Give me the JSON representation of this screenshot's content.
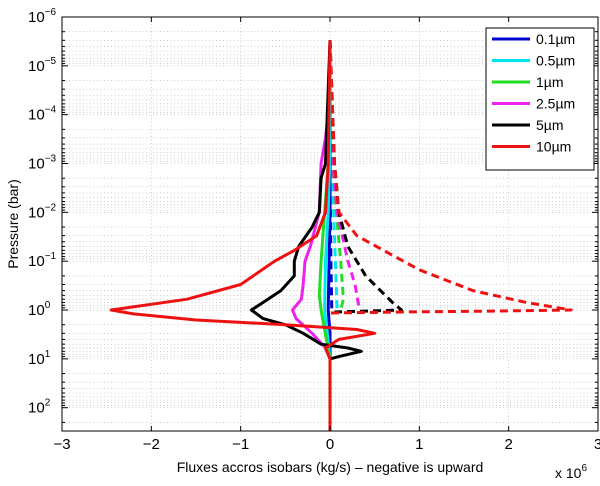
{
  "chart_data": {
    "type": "line",
    "xlabel": "Fluxes accros isobars  (kg/s)  – negative is upward",
    "ylabel": "Pressure (bar)",
    "x_multiplier": "x 10",
    "x_multiplier_exp": "6",
    "xlim": [
      -3,
      3
    ],
    "ylim": [
      1e-06,
      300
    ],
    "y_scale": "log",
    "y_reversed": true,
    "grid": true,
    "legend_position": "top-right",
    "x_ticks": [
      {
        "label": "−3",
        "value": -3
      },
      {
        "label": "−2",
        "value": -2
      },
      {
        "label": "−1",
        "value": -1
      },
      {
        "label": "0",
        "value": 0
      },
      {
        "label": "1",
        "value": 1
      },
      {
        "label": "2",
        "value": 2
      },
      {
        "label": "3",
        "value": 3
      }
    ],
    "y_ticks": [
      {
        "base": "10",
        "exp": "−6",
        "value": 1e-06
      },
      {
        "base": "10",
        "exp": "−5",
        "value": 1e-05
      },
      {
        "base": "10",
        "exp": "−4",
        "value": 0.0001
      },
      {
        "base": "10",
        "exp": "−3",
        "value": 0.001
      },
      {
        "base": "10",
        "exp": "−2",
        "value": 0.01
      },
      {
        "base": "10",
        "exp": "−1",
        "value": 0.1
      },
      {
        "base": "10",
        "exp": "0",
        "value": 1
      },
      {
        "base": "10",
        "exp": "1",
        "value": 10
      },
      {
        "base": "10",
        "exp": "2",
        "value": 100
      }
    ],
    "series": [
      {
        "name": "0.1µm",
        "color": "#0000cc",
        "solid": [
          [
            0,
            3e-06
          ],
          [
            0,
            0.0001
          ],
          [
            0,
            0.01
          ],
          [
            -0.01,
            0.1
          ],
          [
            -0.02,
            1
          ],
          [
            0,
            3
          ],
          [
            0,
            10
          ],
          [
            0,
            300
          ]
        ],
        "dashed": [
          [
            0,
            3e-06
          ],
          [
            0.005,
            0.01
          ],
          [
            0.01,
            0.1
          ],
          [
            0.02,
            1
          ]
        ]
      },
      {
        "name": "0.5µm",
        "color": "#00e5ee",
        "solid": [
          [
            0,
            3e-06
          ],
          [
            -0.005,
            0.001
          ],
          [
            -0.02,
            0.01
          ],
          [
            -0.05,
            0.1
          ],
          [
            -0.06,
            1
          ],
          [
            -0.03,
            3
          ],
          [
            0,
            10
          ],
          [
            0,
            300
          ]
        ],
        "dashed": [
          [
            0,
            3e-06
          ],
          [
            0.02,
            0.001
          ],
          [
            0.04,
            0.01
          ],
          [
            0.06,
            0.1
          ],
          [
            0.08,
            1
          ]
        ]
      },
      {
        "name": "1µm",
        "color": "#22dd22",
        "solid": [
          [
            0,
            3e-06
          ],
          [
            -0.02,
            0.001
          ],
          [
            -0.06,
            0.01
          ],
          [
            -0.1,
            0.1
          ],
          [
            -0.12,
            0.5
          ],
          [
            -0.1,
            1
          ],
          [
            -0.07,
            2
          ],
          [
            -0.04,
            4
          ],
          [
            0,
            10
          ],
          [
            0,
            300
          ]
        ],
        "dashed": [
          [
            0,
            3e-06
          ],
          [
            0.03,
            0.001
          ],
          [
            0.07,
            0.01
          ],
          [
            0.12,
            0.1
          ],
          [
            0.15,
            0.6
          ],
          [
            0.12,
            1
          ]
        ]
      },
      {
        "name": "2.5µm",
        "color": "#ee22ee",
        "solid": [
          [
            0,
            3e-06
          ],
          [
            -0.02,
            0.0001
          ],
          [
            -0.05,
            0.0003
          ],
          [
            -0.1,
            0.001
          ],
          [
            -0.12,
            0.01
          ],
          [
            -0.22,
            0.05
          ],
          [
            -0.28,
            0.1
          ],
          [
            -0.3,
            0.3
          ],
          [
            -0.32,
            0.6
          ],
          [
            -0.42,
            1
          ],
          [
            -0.38,
            1.5
          ],
          [
            -0.2,
            3
          ],
          [
            -0.05,
            6
          ],
          [
            0,
            10
          ],
          [
            0,
            300
          ]
        ],
        "dashed": [
          [
            0,
            3e-06
          ],
          [
            0.03,
            0.001
          ],
          [
            0.08,
            0.01
          ],
          [
            0.2,
            0.1
          ],
          [
            0.28,
            0.3
          ],
          [
            0.33,
            1
          ]
        ]
      },
      {
        "name": "5µm",
        "color": "#000000",
        "solid": [
          [
            0,
            3e-06
          ],
          [
            -0.05,
            0.001
          ],
          [
            -0.1,
            0.002
          ],
          [
            -0.12,
            0.01
          ],
          [
            -0.2,
            0.02
          ],
          [
            -0.35,
            0.05
          ],
          [
            -0.4,
            0.1
          ],
          [
            -0.4,
            0.2
          ],
          [
            -0.55,
            0.4
          ],
          [
            -0.75,
            0.7
          ],
          [
            -0.88,
            1
          ],
          [
            -0.75,
            1.5
          ],
          [
            -0.5,
            2
          ],
          [
            -0.3,
            3
          ],
          [
            -0.1,
            5
          ],
          [
            0.2,
            6
          ],
          [
            0.35,
            7
          ],
          [
            0.1,
            9
          ],
          [
            0,
            10
          ],
          [
            0,
            300
          ]
        ],
        "dashed": [
          [
            0,
            3e-06
          ],
          [
            0.05,
            0.001
          ],
          [
            0.1,
            0.01
          ],
          [
            0.2,
            0.05
          ],
          [
            0.4,
            0.2
          ],
          [
            0.7,
            0.7
          ],
          [
            0.8,
            1
          ],
          [
            0.4,
            1.05
          ],
          [
            0.05,
            1.1
          ]
        ]
      },
      {
        "name": "10µm",
        "color": "#ee1111",
        "solid": [
          [
            0,
            3e-06
          ],
          [
            -0.02,
            0.001
          ],
          [
            -0.05,
            0.01
          ],
          [
            -0.15,
            0.03
          ],
          [
            -0.4,
            0.06
          ],
          [
            -0.62,
            0.1
          ],
          [
            -1.0,
            0.3
          ],
          [
            -1.6,
            0.6
          ],
          [
            -2.45,
            1
          ],
          [
            -2.2,
            1.2
          ],
          [
            -1.5,
            1.6
          ],
          [
            -0.5,
            2
          ],
          [
            0.3,
            2.5
          ],
          [
            0.5,
            3
          ],
          [
            0.1,
            4
          ],
          [
            -0.05,
            6
          ],
          [
            0,
            10
          ],
          [
            0,
            300
          ]
        ],
        "dashed": [
          [
            0,
            3e-06
          ],
          [
            0.05,
            0.001
          ],
          [
            0.1,
            0.01
          ],
          [
            0.3,
            0.03
          ],
          [
            0.6,
            0.06
          ],
          [
            1.0,
            0.15
          ],
          [
            1.6,
            0.4
          ],
          [
            2.2,
            0.7
          ],
          [
            2.7,
            1
          ],
          [
            1.8,
            1.05
          ],
          [
            0.8,
            1.1
          ],
          [
            0,
            1.15
          ]
        ]
      }
    ]
  }
}
